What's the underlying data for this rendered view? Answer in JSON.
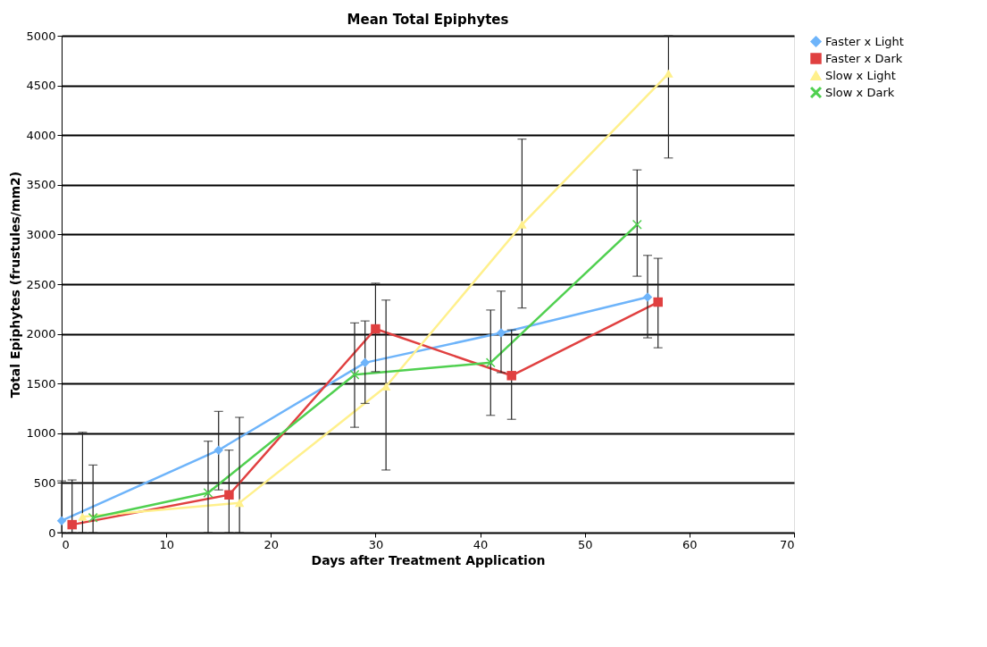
{
  "chart_data": {
    "type": "line",
    "title": "Mean   Total   Epiphytes",
    "xlabel": "Days   after   Treatment   Application",
    "ylabel": "Total Epiphytes (frustules/mm2)",
    "xlim": [
      0,
      70
    ],
    "xticks": [
      0,
      10,
      20,
      30,
      40,
      50,
      60,
      70
    ],
    "ylim": [
      0,
      5000
    ],
    "yticks": [
      0,
      500,
      1000,
      1500,
      2000,
      2500,
      3000,
      3500,
      4000,
      4500,
      5000
    ],
    "grid": "y",
    "legend": "right",
    "line_style": "solid",
    "series": [
      {
        "name": "Faster x Light",
        "color": "#6eb4fa",
        "marker": "diamond",
        "x": [
          0,
          15,
          29,
          42,
          56
        ],
        "values": [
          120,
          830,
          1710,
          2010,
          2370
        ],
        "errors": [
          [
            0,
            520
          ],
          [
            430,
            1220
          ],
          [
            1300,
            2130
          ],
          [
            1610,
            2430
          ],
          [
            1960,
            2790
          ]
        ]
      },
      {
        "name": "Faster x Dark",
        "color": "#e04040",
        "marker": "square",
        "x": [
          1,
          16,
          30,
          43,
          57
        ],
        "values": [
          80,
          380,
          2050,
          1580,
          2320
        ],
        "errors": [
          [
            0,
            530
          ],
          [
            0,
            830
          ],
          [
            1620,
            2510
          ],
          [
            1140,
            2040
          ],
          [
            1860,
            2760
          ]
        ]
      },
      {
        "name": "Slow x Light",
        "color": "#fff08c",
        "marker": "triangle",
        "x": [
          2,
          17,
          31,
          44,
          58
        ],
        "values": [
          160,
          300,
          1470,
          3100,
          4620
        ],
        "errors": [
          [
            0,
            1010
          ],
          [
            0,
            1160
          ],
          [
            630,
            2340
          ],
          [
            2260,
            3960
          ],
          [
            3770,
            5000
          ]
        ]
      },
      {
        "name": "Slow x Dark",
        "color": "#50d050",
        "marker": "cross",
        "x": [
          3,
          14,
          28,
          41,
          55
        ],
        "values": [
          150,
          400,
          1590,
          1710,
          3100
        ],
        "errors": [
          [
            0,
            680
          ],
          [
            0,
            920
          ],
          [
            1060,
            2110
          ],
          [
            1180,
            2240
          ],
          [
            2580,
            3650
          ]
        ]
      }
    ]
  }
}
